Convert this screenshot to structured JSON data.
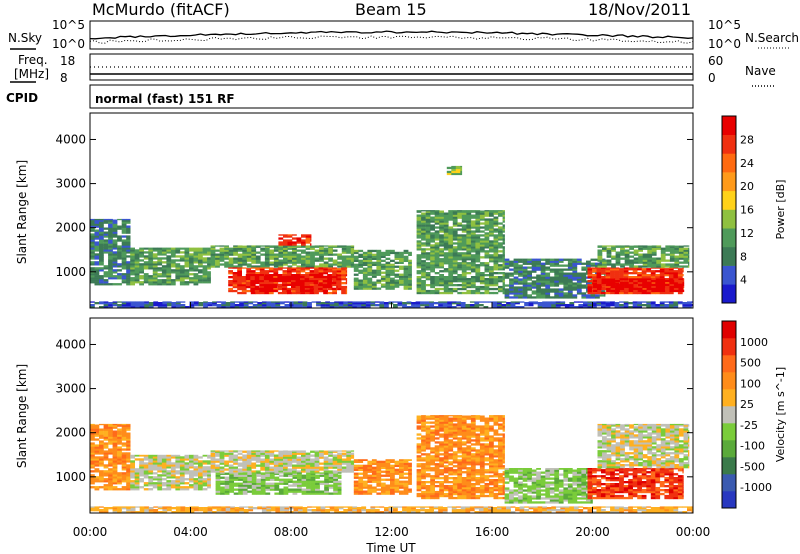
{
  "header": {
    "station": "McMurdo (fitACF)",
    "beam": "Beam 15",
    "date": "18/Nov/2011",
    "cpid_label": "CPID",
    "program": "normal (fast) 151 RF"
  },
  "summary_panels": {
    "noise": {
      "left_label": "N.Sky",
      "right_label": "N.Search",
      "left_ticks": [
        "10^5",
        "10^0"
      ],
      "right_ticks": [
        "10^5",
        "10^0"
      ]
    },
    "freq": {
      "left_label_1": "Freq.",
      "left_label_2": "[MHz]",
      "left_ticks": [
        "18",
        "8"
      ],
      "right_label": "Nave",
      "right_ticks": [
        "60",
        "0"
      ]
    }
  },
  "colors": {
    "power": [
      "#1a1acc",
      "#3a55d0",
      "#3c7a55",
      "#4f9a5a",
      "#8fc040",
      "#ffd21a",
      "#ff9a1a",
      "#ff6a10",
      "#f03010",
      "#e80000"
    ],
    "velocity": [
      "#2838c0",
      "#3a5ab0",
      "#3a7a4a",
      "#5aaa3a",
      "#7acc3a",
      "#c0c0b8",
      "#ffb020",
      "#ff8c1a",
      "#ff6a1a",
      "#f03010",
      "#e00000"
    ]
  },
  "chart_data": [
    {
      "type": "heatmap",
      "title": "Power",
      "xlabel": "Time UT",
      "ylabel": "Slant Range [km]",
      "x_tick_labels": [
        "00:00",
        "04:00",
        "08:00",
        "12:00",
        "16:00",
        "20:00",
        "00:00"
      ],
      "xlim": [
        0,
        24
      ],
      "y_ticks": [
        1000,
        2000,
        3000,
        4000
      ],
      "ylim": [
        180,
        4600
      ],
      "colorbar": {
        "label": "Power [dB]",
        "ticks": [
          4,
          8,
          12,
          16,
          20,
          24,
          28
        ],
        "range": [
          0,
          32
        ]
      },
      "regions": [
        {
          "t0": 0.0,
          "t1": 1.6,
          "r0": 700,
          "r1": 2200,
          "level": 2
        },
        {
          "t0": 1.6,
          "t1": 4.8,
          "r0": 700,
          "r1": 1550,
          "level": 3
        },
        {
          "t0": 4.8,
          "t1": 10.5,
          "r0": 1100,
          "r1": 1600,
          "level": 3
        },
        {
          "t0": 5.5,
          "t1": 10.2,
          "r0": 500,
          "r1": 1100,
          "level": 8
        },
        {
          "t0": 6.2,
          "t1": 9.8,
          "r0": 550,
          "r1": 950,
          "level": 9
        },
        {
          "t0": 10.5,
          "t1": 12.8,
          "r0": 600,
          "r1": 1500,
          "level": 3
        },
        {
          "t0": 13.0,
          "t1": 16.5,
          "r0": 500,
          "r1": 2400,
          "level": 3
        },
        {
          "t0": 16.5,
          "t1": 20.5,
          "r0": 400,
          "r1": 1300,
          "level": 2
        },
        {
          "t0": 19.8,
          "t1": 23.6,
          "r0": 500,
          "r1": 1100,
          "level": 8
        },
        {
          "t0": 20.0,
          "t1": 23.6,
          "r0": 550,
          "r1": 850,
          "level": 9
        },
        {
          "t0": 20.2,
          "t1": 23.8,
          "r0": 1100,
          "r1": 1600,
          "level": 3
        },
        {
          "t0": 7.5,
          "t1": 8.8,
          "r0": 1600,
          "r1": 1850,
          "level": 8
        },
        {
          "t0": 14.2,
          "t1": 14.8,
          "r0": 3200,
          "r1": 3400,
          "level": 4
        },
        {
          "t0": 0.0,
          "t1": 24.0,
          "r0": 180,
          "r1": 330,
          "level": 1
        }
      ]
    },
    {
      "type": "heatmap",
      "title": "Velocity",
      "xlabel": "Time UT",
      "ylabel": "Slant Range [km]",
      "x_tick_labels": [
        "00:00",
        "04:00",
        "08:00",
        "12:00",
        "16:00",
        "20:00",
        "00:00"
      ],
      "xlim": [
        0,
        24
      ],
      "y_ticks": [
        1000,
        2000,
        3000,
        4000
      ],
      "ylim": [
        180,
        4600
      ],
      "colorbar": {
        "label": "Velocity [m s^-1]",
        "ticks": [
          1000,
          500,
          100,
          25,
          -25,
          -100,
          -500,
          -1000
        ]
      },
      "regions": [
        {
          "t0": 0.0,
          "t1": 1.6,
          "r0": 700,
          "r1": 2200,
          "level": 7
        },
        {
          "t0": 1.6,
          "t1": 4.8,
          "r0": 700,
          "r1": 1500,
          "level": 5
        },
        {
          "t0": 4.8,
          "t1": 10.5,
          "r0": 1100,
          "r1": 1600,
          "level": 5
        },
        {
          "t0": 5.0,
          "t1": 10.0,
          "r0": 600,
          "r1": 1100,
          "level": 4
        },
        {
          "t0": 10.5,
          "t1": 12.8,
          "r0": 600,
          "r1": 1400,
          "level": 7
        },
        {
          "t0": 13.0,
          "t1": 16.5,
          "r0": 500,
          "r1": 2400,
          "level": 7
        },
        {
          "t0": 16.5,
          "t1": 20.0,
          "r0": 400,
          "r1": 1200,
          "level": 4
        },
        {
          "t0": 19.8,
          "t1": 23.6,
          "r0": 500,
          "r1": 1200,
          "level": 9
        },
        {
          "t0": 20.2,
          "t1": 23.8,
          "r0": 1200,
          "r1": 2200,
          "level": 5
        },
        {
          "t0": 0.0,
          "t1": 24.0,
          "r0": 180,
          "r1": 330,
          "level": 6
        }
      ]
    }
  ]
}
